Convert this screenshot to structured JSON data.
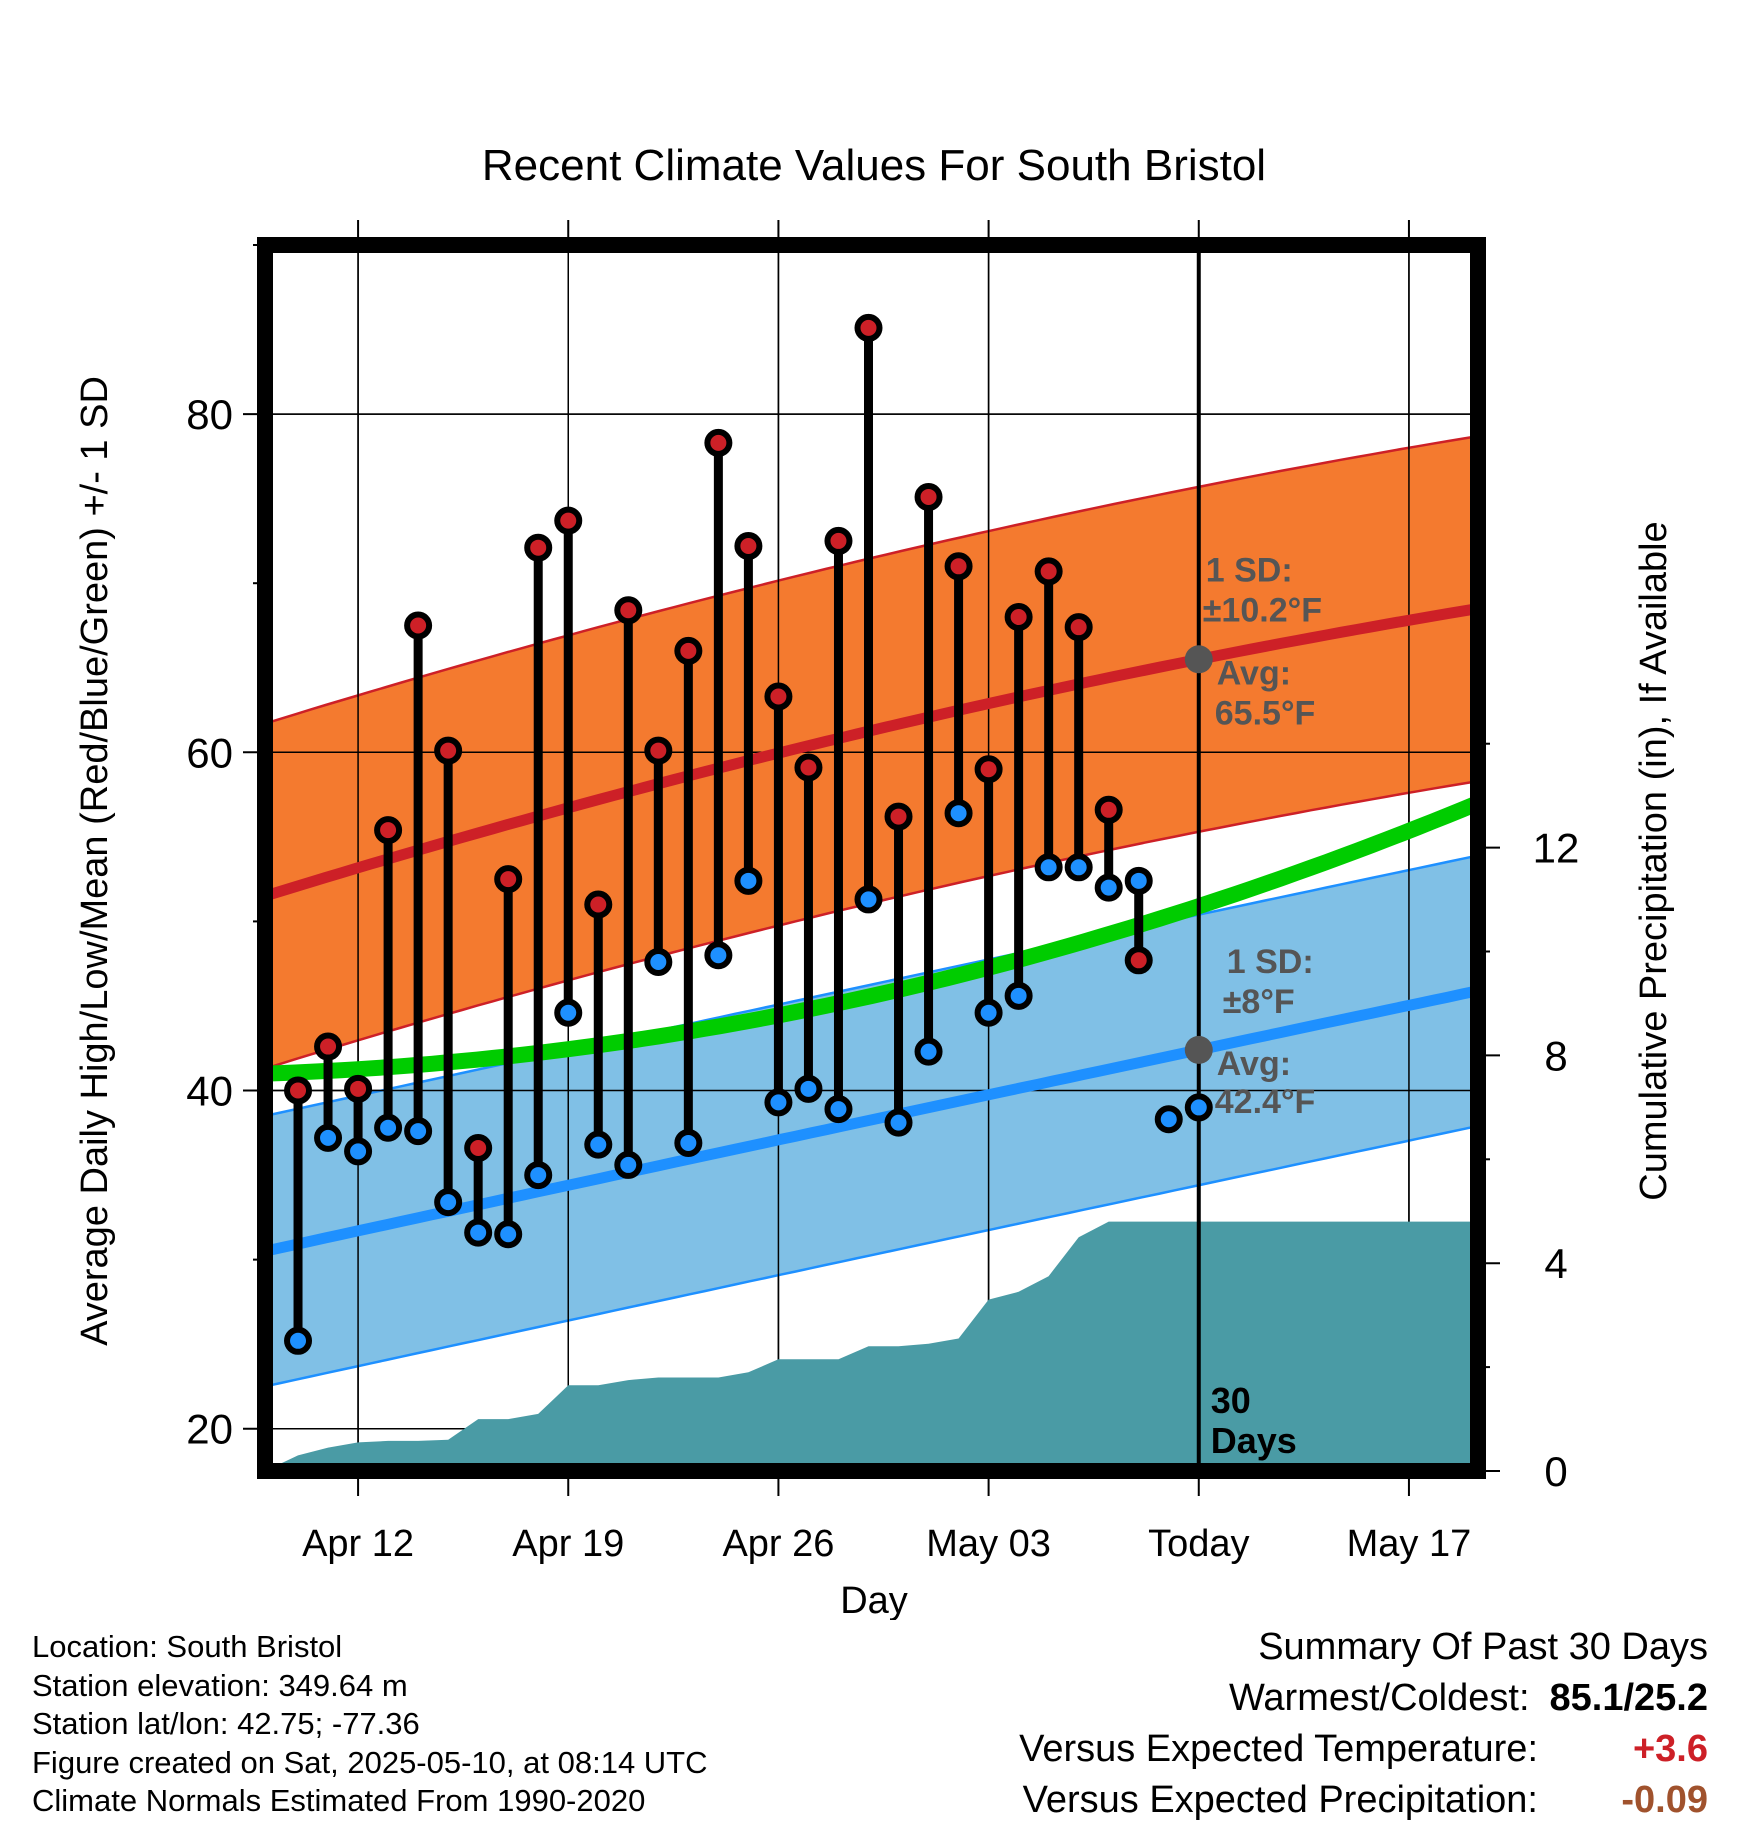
{
  "chart_data": {
    "type": "line",
    "title": "Recent Climate Values For South Bristol",
    "xlabel": "Day",
    "ylabel": "Average Daily High/Low/Mean (Red/Blue/Green) +/- 1 SD",
    "y2label": "Cumulative Precipitation (in), If Available",
    "ylim": [
      17.5,
      90
    ],
    "y2lim": [
      0,
      23.6
    ],
    "y_ticks": [
      "20",
      "40",
      "60",
      "80"
    ],
    "y2_ticks": [
      "0",
      "4",
      "8",
      "12"
    ],
    "x_ticks": [
      {
        "day": 2,
        "label": "Apr 12"
      },
      {
        "day": 9,
        "label": "Apr 19"
      },
      {
        "day": 16,
        "label": "Apr 26"
      },
      {
        "day": 23,
        "label": "May 03"
      },
      {
        "day": 30,
        "label": "Today"
      },
      {
        "day": 37,
        "label": "May 17"
      }
    ],
    "x_range_days": [
      -1.1,
      39.3
    ],
    "today_day": 30,
    "today_label": [
      "30",
      "Days"
    ],
    "grid": true,
    "daily_high": [
      40.0,
      42.6,
      40.1,
      55.4,
      67.5,
      60.1,
      36.6,
      52.5,
      72.1,
      73.7,
      51.0,
      68.4,
      60.1,
      66.0,
      78.3,
      72.2,
      63.3,
      59.1,
      72.5,
      85.1,
      56.2,
      75.1,
      71.0,
      59.0,
      68.0,
      70.7,
      67.4,
      56.6,
      47.7
    ],
    "daily_low": [
      25.2,
      37.2,
      36.4,
      37.8,
      37.6,
      33.4,
      31.6,
      31.5,
      35.0,
      44.6,
      36.8,
      35.6,
      47.6,
      36.9,
      48.0,
      52.4,
      39.3,
      40.1,
      38.9,
      51.3,
      38.1,
      42.3,
      56.4,
      44.6,
      45.6,
      53.2,
      53.2,
      52.0,
      52.4,
      38.3,
      39.0
    ],
    "low_days": [
      0,
      1,
      2,
      3,
      4,
      5,
      6,
      7,
      8,
      9,
      10,
      11,
      12,
      13,
      14,
      15,
      16,
      17,
      18,
      19,
      20,
      21,
      22,
      23,
      24,
      25,
      26,
      27,
      28,
      29,
      30
    ],
    "normal_high_mean": {
      "start": 51.5,
      "today": 65.5,
      "end": 68.5
    },
    "normal_high_sd": "1 SD:",
    "normal_high_sd_value": "±10.2°F",
    "normal_high_avg_label": "Avg:",
    "normal_high_avg_value": "65.5°F",
    "normal_low_mean": {
      "start": 30.5,
      "today": 42.4,
      "end": 45.9
    },
    "normal_low_sd": "1 SD:",
    "normal_low_sd_value": "±8°F",
    "normal_low_avg_label": "Avg:",
    "normal_low_avg_value": "42.4°F",
    "normal_mean": {
      "start": 41.0,
      "end": 57.0
    },
    "cumulative_precip": {
      "days": [
        -1.1,
        0,
        1,
        2,
        3,
        4,
        5,
        6,
        7,
        8,
        9,
        10,
        11,
        12,
        13,
        14,
        15,
        16,
        17,
        18,
        19,
        20,
        21,
        22,
        23,
        24,
        25,
        26,
        27,
        28,
        29,
        30,
        39.3
      ],
      "values": [
        0.0,
        0.3,
        0.45,
        0.55,
        0.58,
        0.58,
        0.6,
        1.0,
        1.0,
        1.1,
        1.65,
        1.65,
        1.75,
        1.8,
        1.8,
        1.8,
        1.9,
        2.15,
        2.15,
        2.15,
        2.4,
        2.4,
        2.45,
        2.55,
        3.3,
        3.45,
        3.75,
        4.5,
        4.8,
        4.8,
        4.8,
        4.8,
        4.8
      ]
    },
    "colors": {
      "high_band": "#f47a2f",
      "high_line": "#cd2027",
      "low_band": "#80c0e6",
      "low_line": "#1e90ff",
      "mean_line": "#00cc00",
      "precip": "#4a9ba5",
      "high_marker": "#cd2027",
      "low_marker": "#1e90ff",
      "annotation": "#555555"
    }
  },
  "footer": {
    "location": "Location: South Bristol",
    "elevation": "Station elevation: 349.64 m",
    "latlon": "Station lat/lon: 42.75; -77.36",
    "created": "Figure created on Sat, 2025-05-10, at 08:14 UTC",
    "normals": "Climate Normals Estimated From 1990-2020"
  },
  "summary": {
    "title": "Summary Of Past 30 Days",
    "warm_cold_label": "Warmest/Coldest:",
    "warm_cold_value": "85.1/25.2",
    "temp_label": "Versus Expected Temperature:",
    "temp_value": "+3.6",
    "temp_color": "#cd2027",
    "precip_label": "Versus Expected Precipitation:",
    "precip_value": "-0.09",
    "precip_color": "#a0522d"
  }
}
